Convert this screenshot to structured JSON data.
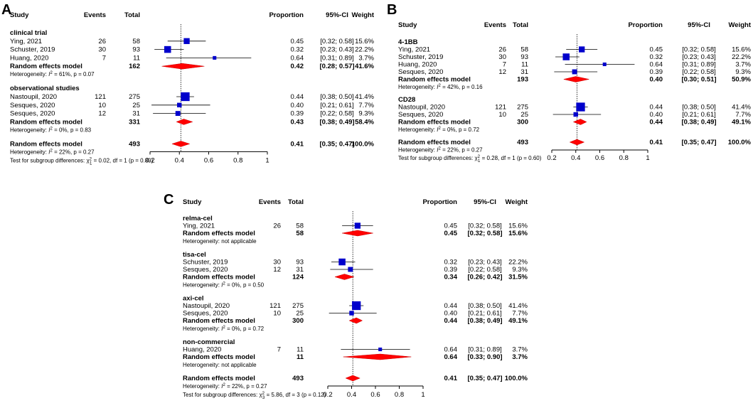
{
  "headers": {
    "study": "Study",
    "events": "Events",
    "total": "Total",
    "proportion": "Proportion",
    "ci": "95%-CI",
    "weight": "Weight"
  },
  "axis_ticks": [
    "0.2",
    "0.4",
    "0.6",
    "0.8",
    "1"
  ],
  "chart_data": [
    {
      "type": "forest",
      "label": "A",
      "xlim": [
        0.2,
        1
      ],
      "reference_line": 0.41,
      "groups": [
        {
          "name": "clinical trial",
          "studies": [
            {
              "study": "Ying, 2021",
              "events": "26",
              "total": "58",
              "prop": "0.45",
              "ci": "[0.32; 0.58]",
              "weight": "15.6%",
              "est": 0.45,
              "lo": 0.32,
              "hi": 0.58,
              "w": 15.6
            },
            {
              "study": "Schuster, 2019",
              "events": "30",
              "total": "93",
              "prop": "0.32",
              "ci": "[0.23; 0.43]",
              "weight": "22.2%",
              "est": 0.32,
              "lo": 0.23,
              "hi": 0.43,
              "w": 22.2
            },
            {
              "study": "Huang, 2020",
              "events": "7",
              "total": "11",
              "prop": "0.64",
              "ci": "[0.31; 0.89]",
              "weight": "3.7%",
              "est": 0.64,
              "lo": 0.31,
              "hi": 0.89,
              "w": 3.7
            }
          ],
          "pooled": {
            "label": "Random effects model",
            "total": "162",
            "prop": "0.42",
            "ci": "[0.28; 0.57]",
            "weight": "41.6%",
            "est": 0.42,
            "lo": 0.28,
            "hi": 0.57
          },
          "heterogeneity": {
            "prefix": "Heterogeneity: ",
            "i": "I",
            "sup": "2",
            "rest": " = 61%, p = 0.07"
          }
        },
        {
          "name": "observational studies",
          "studies": [
            {
              "study": "Nastoupil, 2020",
              "events": "121",
              "total": "275",
              "prop": "0.44",
              "ci": "[0.38; 0.50]",
              "weight": "41.4%",
              "est": 0.44,
              "lo": 0.38,
              "hi": 0.5,
              "w": 41.4
            },
            {
              "study": "Sesques, 2020",
              "events": "10",
              "total": "25",
              "prop": "0.40",
              "ci": "[0.21; 0.61]",
              "weight": "7.7%",
              "est": 0.4,
              "lo": 0.21,
              "hi": 0.61,
              "w": 7.7
            },
            {
              "study": "Sesques, 2020",
              "events": "12",
              "total": "31",
              "prop": "0.39",
              "ci": "[0.22; 0.58]",
              "weight": "9.3%",
              "est": 0.39,
              "lo": 0.22,
              "hi": 0.58,
              "w": 9.3
            }
          ],
          "pooled": {
            "label": "Random effects model",
            "total": "331",
            "prop": "0.43",
            "ci": "[0.38; 0.49]",
            "weight": "58.4%",
            "est": 0.43,
            "lo": 0.38,
            "hi": 0.49
          },
          "heterogeneity": {
            "prefix": "Heterogeneity: ",
            "i": "I",
            "sup": "2",
            "rest": " = 0%, p = 0.83"
          }
        }
      ],
      "overall": {
        "label": "Random effects model",
        "total": "493",
        "prop": "0.41",
        "ci": "[0.35; 0.47]",
        "weight": "100.0%",
        "est": 0.41,
        "lo": 0.35,
        "hi": 0.47
      },
      "overall_heterogeneity": {
        "prefix": "Heterogeneity: ",
        "i": "I",
        "sup": "2",
        "rest": " = 22%, p = 0.27"
      },
      "subgroup_test": {
        "prefix": "Test for subgroup differences: ",
        "chi": "χ",
        "sup": "2",
        "sub": "1",
        "rest": " = 0.02, df = 1 (p = 0.89)"
      }
    },
    {
      "type": "forest",
      "label": "B",
      "xlim": [
        0.2,
        1
      ],
      "reference_line": 0.41,
      "groups": [
        {
          "name": "4-1BB",
          "studies": [
            {
              "study": "Ying, 2021",
              "events": "26",
              "total": "58",
              "prop": "0.45",
              "ci": "[0.32; 0.58]",
              "weight": "15.6%",
              "est": 0.45,
              "lo": 0.32,
              "hi": 0.58,
              "w": 15.6
            },
            {
              "study": "Schuster, 2019",
              "events": "30",
              "total": "93",
              "prop": "0.32",
              "ci": "[0.23; 0.43]",
              "weight": "22.2%",
              "est": 0.32,
              "lo": 0.23,
              "hi": 0.43,
              "w": 22.2
            },
            {
              "study": "Huang, 2020",
              "events": "7",
              "total": "11",
              "prop": "0.64",
              "ci": "[0.31; 0.89]",
              "weight": "3.7%",
              "est": 0.64,
              "lo": 0.31,
              "hi": 0.89,
              "w": 3.7
            },
            {
              "study": "Sesques, 2020",
              "events": "12",
              "total": "31",
              "prop": "0.39",
              "ci": "[0.22; 0.58]",
              "weight": "9.3%",
              "est": 0.39,
              "lo": 0.22,
              "hi": 0.58,
              "w": 9.3
            }
          ],
          "pooled": {
            "label": "Random effects model",
            "total": "193",
            "prop": "0.40",
            "ci": "[0.30; 0.51]",
            "weight": "50.9%",
            "est": 0.4,
            "lo": 0.3,
            "hi": 0.51
          },
          "heterogeneity": {
            "prefix": "Heterogeneity: ",
            "i": "I",
            "sup": "2",
            "rest": " = 42%, p = 0.16"
          }
        },
        {
          "name": "CD28",
          "studies": [
            {
              "study": "Nastoupil, 2020",
              "events": "121",
              "total": "275",
              "prop": "0.44",
              "ci": "[0.38; 0.50]",
              "weight": "41.4%",
              "est": 0.44,
              "lo": 0.38,
              "hi": 0.5,
              "w": 41.4
            },
            {
              "study": "Sesques, 2020",
              "events": "10",
              "total": "25",
              "prop": "0.40",
              "ci": "[0.21; 0.61]",
              "weight": "7.7%",
              "est": 0.4,
              "lo": 0.21,
              "hi": 0.61,
              "w": 7.7
            }
          ],
          "pooled": {
            "label": "Random effects model",
            "total": "300",
            "prop": "0.44",
            "ci": "[0.38; 0.49]",
            "weight": "49.1%",
            "est": 0.44,
            "lo": 0.38,
            "hi": 0.49
          },
          "heterogeneity": {
            "prefix": "Heterogeneity: ",
            "i": "I",
            "sup": "2",
            "rest": " = 0%, p = 0.72"
          }
        }
      ],
      "overall": {
        "label": "Random effects model",
        "total": "493",
        "prop": "0.41",
        "ci": "[0.35; 0.47]",
        "weight": "100.0%",
        "est": 0.41,
        "lo": 0.35,
        "hi": 0.47
      },
      "overall_heterogeneity": {
        "prefix": "Heterogeneity: ",
        "i": "I",
        "sup": "2",
        "rest": " = 22%, p = 0.27"
      },
      "subgroup_test": {
        "prefix": "Test for subgroup differences: ",
        "chi": "χ",
        "sup": "2",
        "sub": "1",
        "rest": " = 0.28, df = 1 (p = 0.60)"
      }
    },
    {
      "type": "forest",
      "label": "C",
      "xlim": [
        0.2,
        1
      ],
      "reference_line": 0.41,
      "groups": [
        {
          "name": "relma-cel",
          "studies": [
            {
              "study": "Ying, 2021",
              "events": "26",
              "total": "58",
              "prop": "0.45",
              "ci": "[0.32; 0.58]",
              "weight": "15.6%",
              "est": 0.45,
              "lo": 0.32,
              "hi": 0.58,
              "w": 15.6
            }
          ],
          "pooled": {
            "label": "Random effects model",
            "total": "58",
            "prop": "0.45",
            "ci": "[0.32; 0.58]",
            "weight": "15.6%",
            "est": 0.45,
            "lo": 0.32,
            "hi": 0.58
          },
          "heterogeneity": {
            "prefix": "Heterogeneity: not applicable",
            "i": "",
            "sup": "",
            "rest": ""
          }
        },
        {
          "name": "tisa-cel",
          "studies": [
            {
              "study": "Schuster, 2019",
              "events": "30",
              "total": "93",
              "prop": "0.32",
              "ci": "[0.23; 0.43]",
              "weight": "22.2%",
              "est": 0.32,
              "lo": 0.23,
              "hi": 0.43,
              "w": 22.2
            },
            {
              "study": "Sesques, 2020",
              "events": "12",
              "total": "31",
              "prop": "0.39",
              "ci": "[0.22; 0.58]",
              "weight": "9.3%",
              "est": 0.39,
              "lo": 0.22,
              "hi": 0.58,
              "w": 9.3
            }
          ],
          "pooled": {
            "label": "Random effects model",
            "total": "124",
            "prop": "0.34",
            "ci": "[0.26; 0.42]",
            "weight": "31.5%",
            "est": 0.34,
            "lo": 0.26,
            "hi": 0.42
          },
          "heterogeneity": {
            "prefix": "Heterogeneity: ",
            "i": "I",
            "sup": "2",
            "rest": " = 0%, p = 0.50"
          }
        },
        {
          "name": "axi-cel",
          "studies": [
            {
              "study": "Nastoupil, 2020",
              "events": "121",
              "total": "275",
              "prop": "0.44",
              "ci": "[0.38; 0.50]",
              "weight": "41.4%",
              "est": 0.44,
              "lo": 0.38,
              "hi": 0.5,
              "w": 41.4
            },
            {
              "study": "Sesques, 2020",
              "events": "10",
              "total": "25",
              "prop": "0.40",
              "ci": "[0.21; 0.61]",
              "weight": "7.7%",
              "est": 0.4,
              "lo": 0.21,
              "hi": 0.61,
              "w": 7.7
            }
          ],
          "pooled": {
            "label": "Random effects model",
            "total": "300",
            "prop": "0.44",
            "ci": "[0.38; 0.49]",
            "weight": "49.1%",
            "est": 0.44,
            "lo": 0.38,
            "hi": 0.49
          },
          "heterogeneity": {
            "prefix": "Heterogeneity: ",
            "i": "I",
            "sup": "2",
            "rest": " = 0%, p = 0.72"
          }
        },
        {
          "name": "non-commercial",
          "studies": [
            {
              "study": "Huang, 2020",
              "events": "7",
              "total": "11",
              "prop": "0.64",
              "ci": "[0.31; 0.89]",
              "weight": "3.7%",
              "est": 0.64,
              "lo": 0.31,
              "hi": 0.89,
              "w": 3.7
            }
          ],
          "pooled": {
            "label": "Random effects model",
            "total": "11",
            "prop": "0.64",
            "ci": "[0.33; 0.90]",
            "weight": "3.7%",
            "est": 0.64,
            "lo": 0.33,
            "hi": 0.9
          },
          "heterogeneity": {
            "prefix": "Heterogeneity: not applicable",
            "i": "",
            "sup": "",
            "rest": ""
          }
        }
      ],
      "overall": {
        "label": "Random effects model",
        "total": "493",
        "prop": "0.41",
        "ci": "[0.35; 0.47]",
        "weight": "100.0%",
        "est": 0.41,
        "lo": 0.35,
        "hi": 0.47
      },
      "overall_heterogeneity": {
        "prefix": "Heterogeneity: ",
        "i": "I",
        "sup": "2",
        "rest": " = 22%, p = 0.27"
      },
      "subgroup_test": {
        "prefix": "Test for subgroup differences: ",
        "chi": "χ",
        "sup": "2",
        "sub": "3",
        "rest": " = 5.86, df = 3 (p = 0.12)"
      }
    }
  ]
}
